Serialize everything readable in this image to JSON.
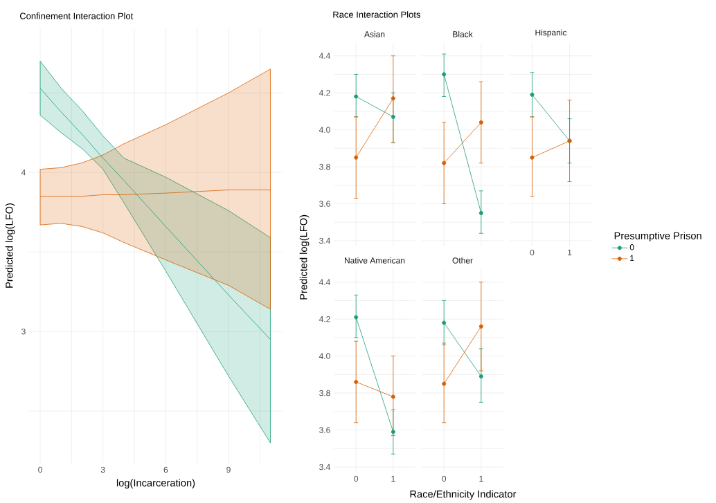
{
  "chart_data": [
    {
      "type": "line",
      "title": "Confinement Interaction Plot",
      "xlabel": "log(Incarceration)",
      "ylabel": "Predicted log(LFO)",
      "xlim": [
        -0.53,
        11.58
      ],
      "xticks": [
        0,
        {
          "value": 1.5,
          "label": null
        },
        3,
        {
          "value": 4.5,
          "label": null
        },
        6,
        {
          "value": 7.5,
          "label": null
        },
        9,
        {
          "value": 10.5,
          "label": null
        }
      ],
      "ylim": [
        2.17,
        4.91
      ],
      "yticks": [
        {
          "value": 2.5,
          "label": null
        },
        3,
        {
          "value": 3.5,
          "label": null
        },
        4,
        {
          "value": 4.5,
          "label": null
        }
      ],
      "grid": true,
      "series": [
        {
          "color": "#1b9e77",
          "x": [
            0,
            1,
            2,
            3,
            4,
            6,
            9,
            11
          ],
          "values": [
            4.53,
            4.38,
            4.24,
            4.09,
            3.95,
            3.66,
            3.23,
            2.95
          ],
          "lower": [
            4.36,
            4.25,
            4.15,
            4.02,
            3.81,
            3.38,
            2.72,
            2.3
          ],
          "upper": [
            4.7,
            4.53,
            4.39,
            4.23,
            4.09,
            3.97,
            3.76,
            3.59
          ]
        },
        {
          "color": "#d95f02",
          "x": [
            0,
            1,
            2,
            3,
            4,
            6,
            9,
            11
          ],
          "values": [
            3.85,
            3.85,
            3.85,
            3.86,
            3.86,
            3.87,
            3.89,
            3.89
          ],
          "lower": [
            3.67,
            3.68,
            3.66,
            3.62,
            3.56,
            3.45,
            3.29,
            3.14
          ],
          "upper": [
            4.02,
            4.03,
            4.06,
            4.11,
            4.18,
            4.3,
            4.5,
            4.65
          ]
        }
      ]
    },
    {
      "type": "line",
      "title": "Race Interaction Plots",
      "subtitle": "Asian",
      "ylabel": "Predicted log(LFO)",
      "categories": [
        "0",
        "1"
      ],
      "ylim": [
        3.37,
        4.47
      ],
      "yticks": [
        3.4,
        {
          "value": 3.5,
          "label": null
        },
        3.6,
        {
          "value": 3.7,
          "label": null
        },
        3.8,
        {
          "value": 3.9,
          "label": null
        },
        {
          "value": 4,
          "label": "4.0"
        },
        {
          "value": 4.1,
          "label": null
        },
        4.2,
        {
          "value": 4.3,
          "label": null
        },
        4.4
      ],
      "grid": true,
      "tick_labels": "y",
      "marker": "circle",
      "series": [
        {
          "color": "#1b9e77",
          "values": [
            4.18,
            4.07
          ],
          "errors": [
            [
              4.07,
              4.3
            ],
            [
              3.93,
              4.2
            ]
          ]
        },
        {
          "color": "#d95f02",
          "values": [
            3.85,
            4.17
          ],
          "errors": [
            [
              3.63,
              4.07
            ],
            [
              3.93,
              4.4
            ]
          ]
        }
      ]
    },
    {
      "type": "line",
      "subtitle": "Black",
      "categories": [
        "0",
        "1"
      ],
      "ylim": [
        3.37,
        4.47
      ],
      "yticks": [
        3.4,
        {
          "value": 3.5,
          "label": null
        },
        3.6,
        {
          "value": 3.7,
          "label": null
        },
        3.8,
        {
          "value": 3.9,
          "label": null
        },
        {
          "value": 4,
          "label": null
        },
        {
          "value": 4.1,
          "label": null
        },
        4.2,
        {
          "value": 4.3,
          "label": null
        },
        4.4
      ],
      "grid": true,
      "tick_labels": false,
      "marker": "circle",
      "series": [
        {
          "color": "#1b9e77",
          "values": [
            4.3,
            3.55
          ],
          "errors": [
            [
              4.18,
              4.41
            ],
            [
              3.44,
              3.67
            ]
          ]
        },
        {
          "color": "#d95f02",
          "values": [
            3.82,
            4.04
          ],
          "errors": [
            [
              3.6,
              4.04
            ],
            [
              3.82,
              4.26
            ]
          ]
        }
      ]
    },
    {
      "type": "line",
      "subtitle": "Hispanic",
      "categories": [
        "0",
        "1"
      ],
      "ylim": [
        3.37,
        4.47
      ],
      "yticks": [
        3.4,
        {
          "value": 3.5,
          "label": null
        },
        3.6,
        {
          "value": 3.7,
          "label": null
        },
        3.8,
        {
          "value": 3.9,
          "label": null
        },
        {
          "value": 4,
          "label": null
        },
        {
          "value": 4.1,
          "label": null
        },
        4.2,
        {
          "value": 4.3,
          "label": null
        },
        4.4
      ],
      "grid": true,
      "tick_labels": "x",
      "marker": "circle",
      "legend": "right",
      "legend_title": "Presumptive Prison",
      "series": [
        {
          "name": "0",
          "color": "#1b9e77",
          "values": [
            4.19,
            3.94
          ],
          "errors": [
            [
              4.07,
              4.31
            ],
            [
              3.82,
              4.06
            ]
          ]
        },
        {
          "name": "1",
          "color": "#d95f02",
          "values": [
            3.85,
            3.94
          ],
          "errors": [
            [
              3.64,
              4.07
            ],
            [
              3.72,
              4.16
            ]
          ]
        }
      ]
    },
    {
      "type": "line",
      "subtitle": "Native American",
      "xlabel": "Race/Ethnicity Indicator",
      "categories": [
        "0",
        "1"
      ],
      "ylim": [
        3.37,
        4.47
      ],
      "yticks": [
        3.4,
        {
          "value": 3.5,
          "label": null
        },
        3.6,
        {
          "value": 3.7,
          "label": null
        },
        3.8,
        {
          "value": 3.9,
          "label": null
        },
        {
          "value": 4,
          "label": "4.0"
        },
        {
          "value": 4.1,
          "label": null
        },
        4.2,
        {
          "value": 4.3,
          "label": null
        },
        4.4
      ],
      "grid": true,
      "marker": "circle",
      "series": [
        {
          "color": "#1b9e77",
          "values": [
            4.21,
            3.59
          ],
          "errors": [
            [
              4.1,
              4.33
            ],
            [
              3.47,
              3.71
            ]
          ]
        },
        {
          "color": "#d95f02",
          "values": [
            3.86,
            3.78
          ],
          "errors": [
            [
              3.64,
              4.08
            ],
            [
              3.57,
              4.0
            ]
          ]
        }
      ]
    },
    {
      "type": "line",
      "subtitle": "Other",
      "categories": [
        "0",
        "1"
      ],
      "ylim": [
        3.37,
        4.47
      ],
      "yticks": [
        3.4,
        {
          "value": 3.5,
          "label": null
        },
        3.6,
        {
          "value": 3.7,
          "label": null
        },
        3.8,
        {
          "value": 3.9,
          "label": null
        },
        {
          "value": 4,
          "label": null
        },
        {
          "value": 4.1,
          "label": null
        },
        4.2,
        {
          "value": 4.3,
          "label": null
        },
        4.4
      ],
      "grid": true,
      "tick_labels": "x",
      "marker": "circle",
      "series": [
        {
          "color": "#1b9e77",
          "values": [
            4.18,
            3.89
          ],
          "errors": [
            [
              4.06,
              4.3
            ],
            [
              3.75,
              4.04
            ]
          ]
        },
        {
          "color": "#d95f02",
          "values": [
            3.85,
            4.16
          ],
          "errors": [
            [
              3.64,
              4.07
            ],
            [
              3.92,
              4.4
            ]
          ]
        }
      ]
    }
  ]
}
